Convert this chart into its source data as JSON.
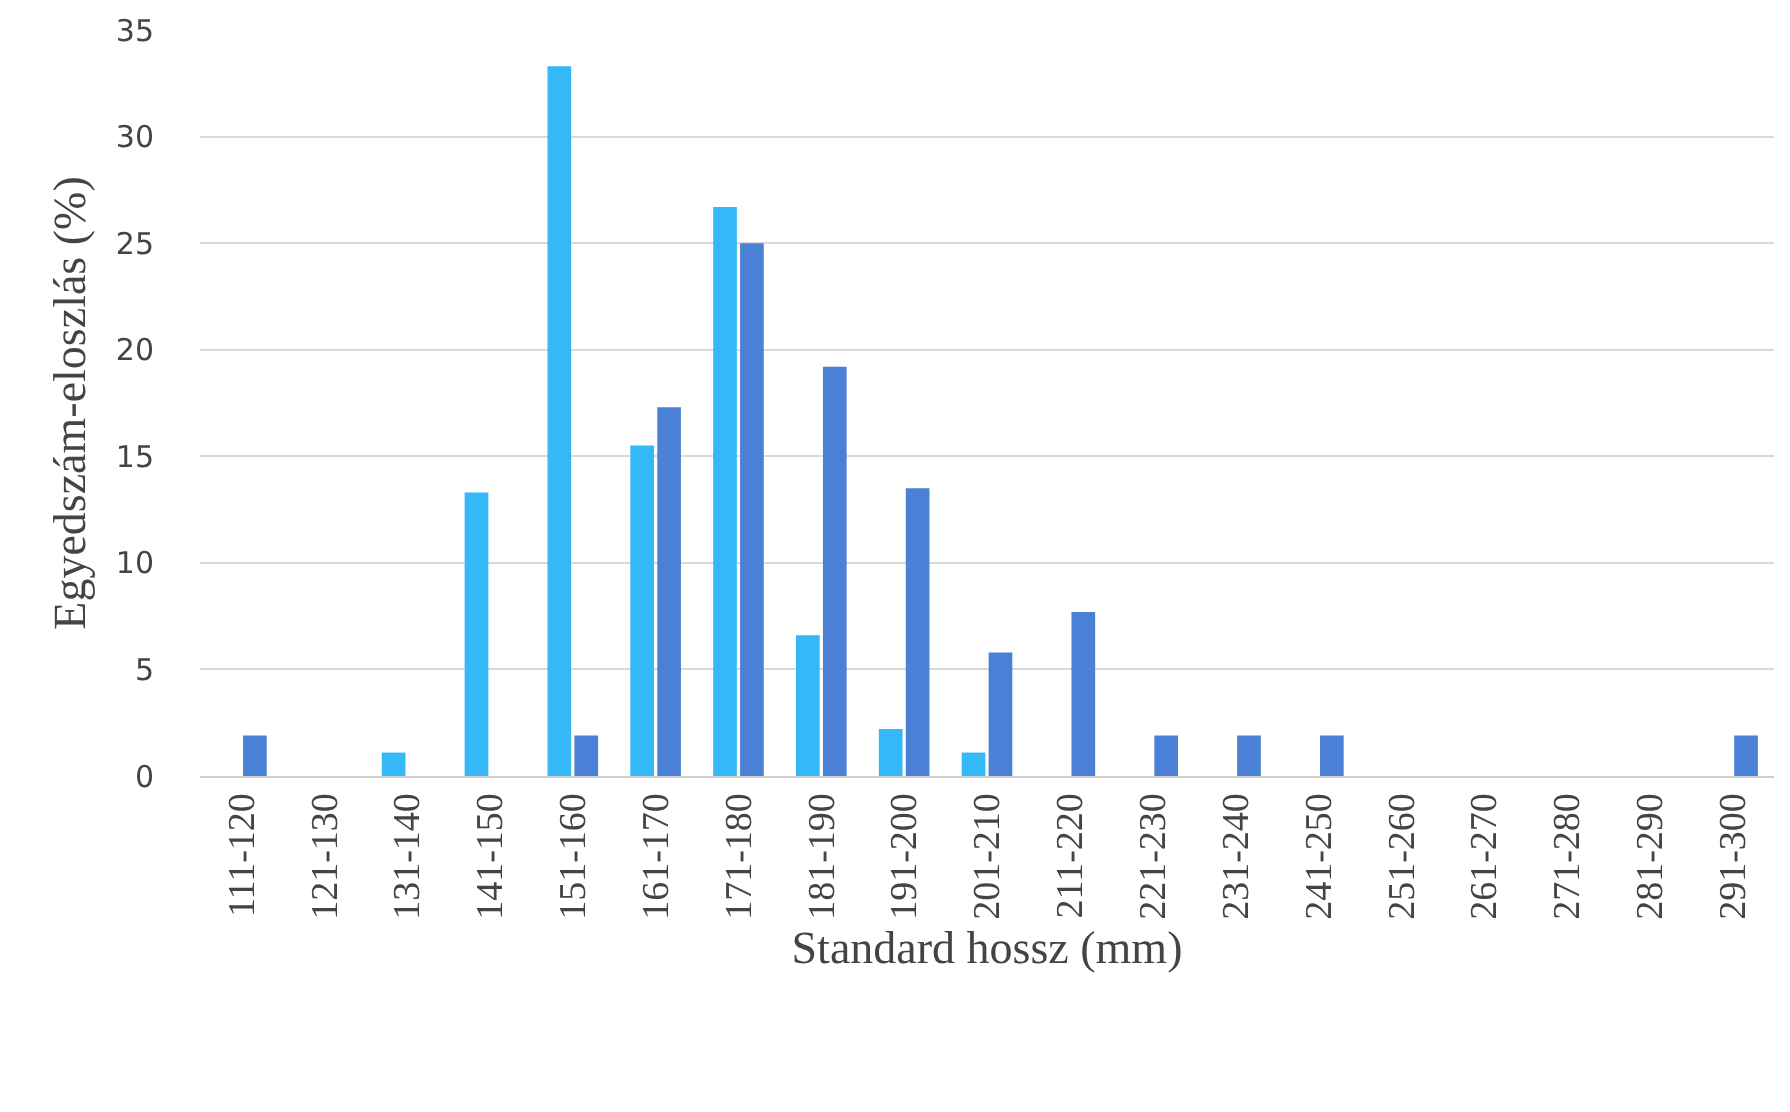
{
  "chart_data": {
    "type": "bar",
    "xlabel": "Standard hossz (mm)",
    "ylabel": "Egyedszám-eloszlás (%)",
    "categories": [
      "111-120",
      "121-130",
      "131-140",
      "141-150",
      "151-160",
      "161-170",
      "171-180",
      "181-190",
      "191-200",
      "201-210",
      "211-220",
      "221-230",
      "231-240",
      "241-250",
      "251-260",
      "261-270",
      "271-280",
      "281-290",
      "291-300"
    ],
    "series": [
      {
        "color": "#35b8f7",
        "values": [
          0,
          0,
          1.1,
          13.3,
          33.3,
          15.5,
          26.7,
          6.6,
          2.2,
          1.1,
          0,
          0,
          0,
          0,
          0,
          0,
          0,
          0,
          0
        ]
      },
      {
        "color": "#4a80d6",
        "values": [
          1.9,
          0,
          0,
          0,
          1.9,
          17.3,
          25,
          19.2,
          13.5,
          5.8,
          7.7,
          1.9,
          1.9,
          1.9,
          0,
          0,
          0,
          0,
          1.9
        ]
      }
    ],
    "ylim": [
      0,
      35
    ],
    "yticks": [
      0,
      5,
      10,
      15,
      20,
      25,
      30,
      35
    ],
    "grid": "y"
  }
}
